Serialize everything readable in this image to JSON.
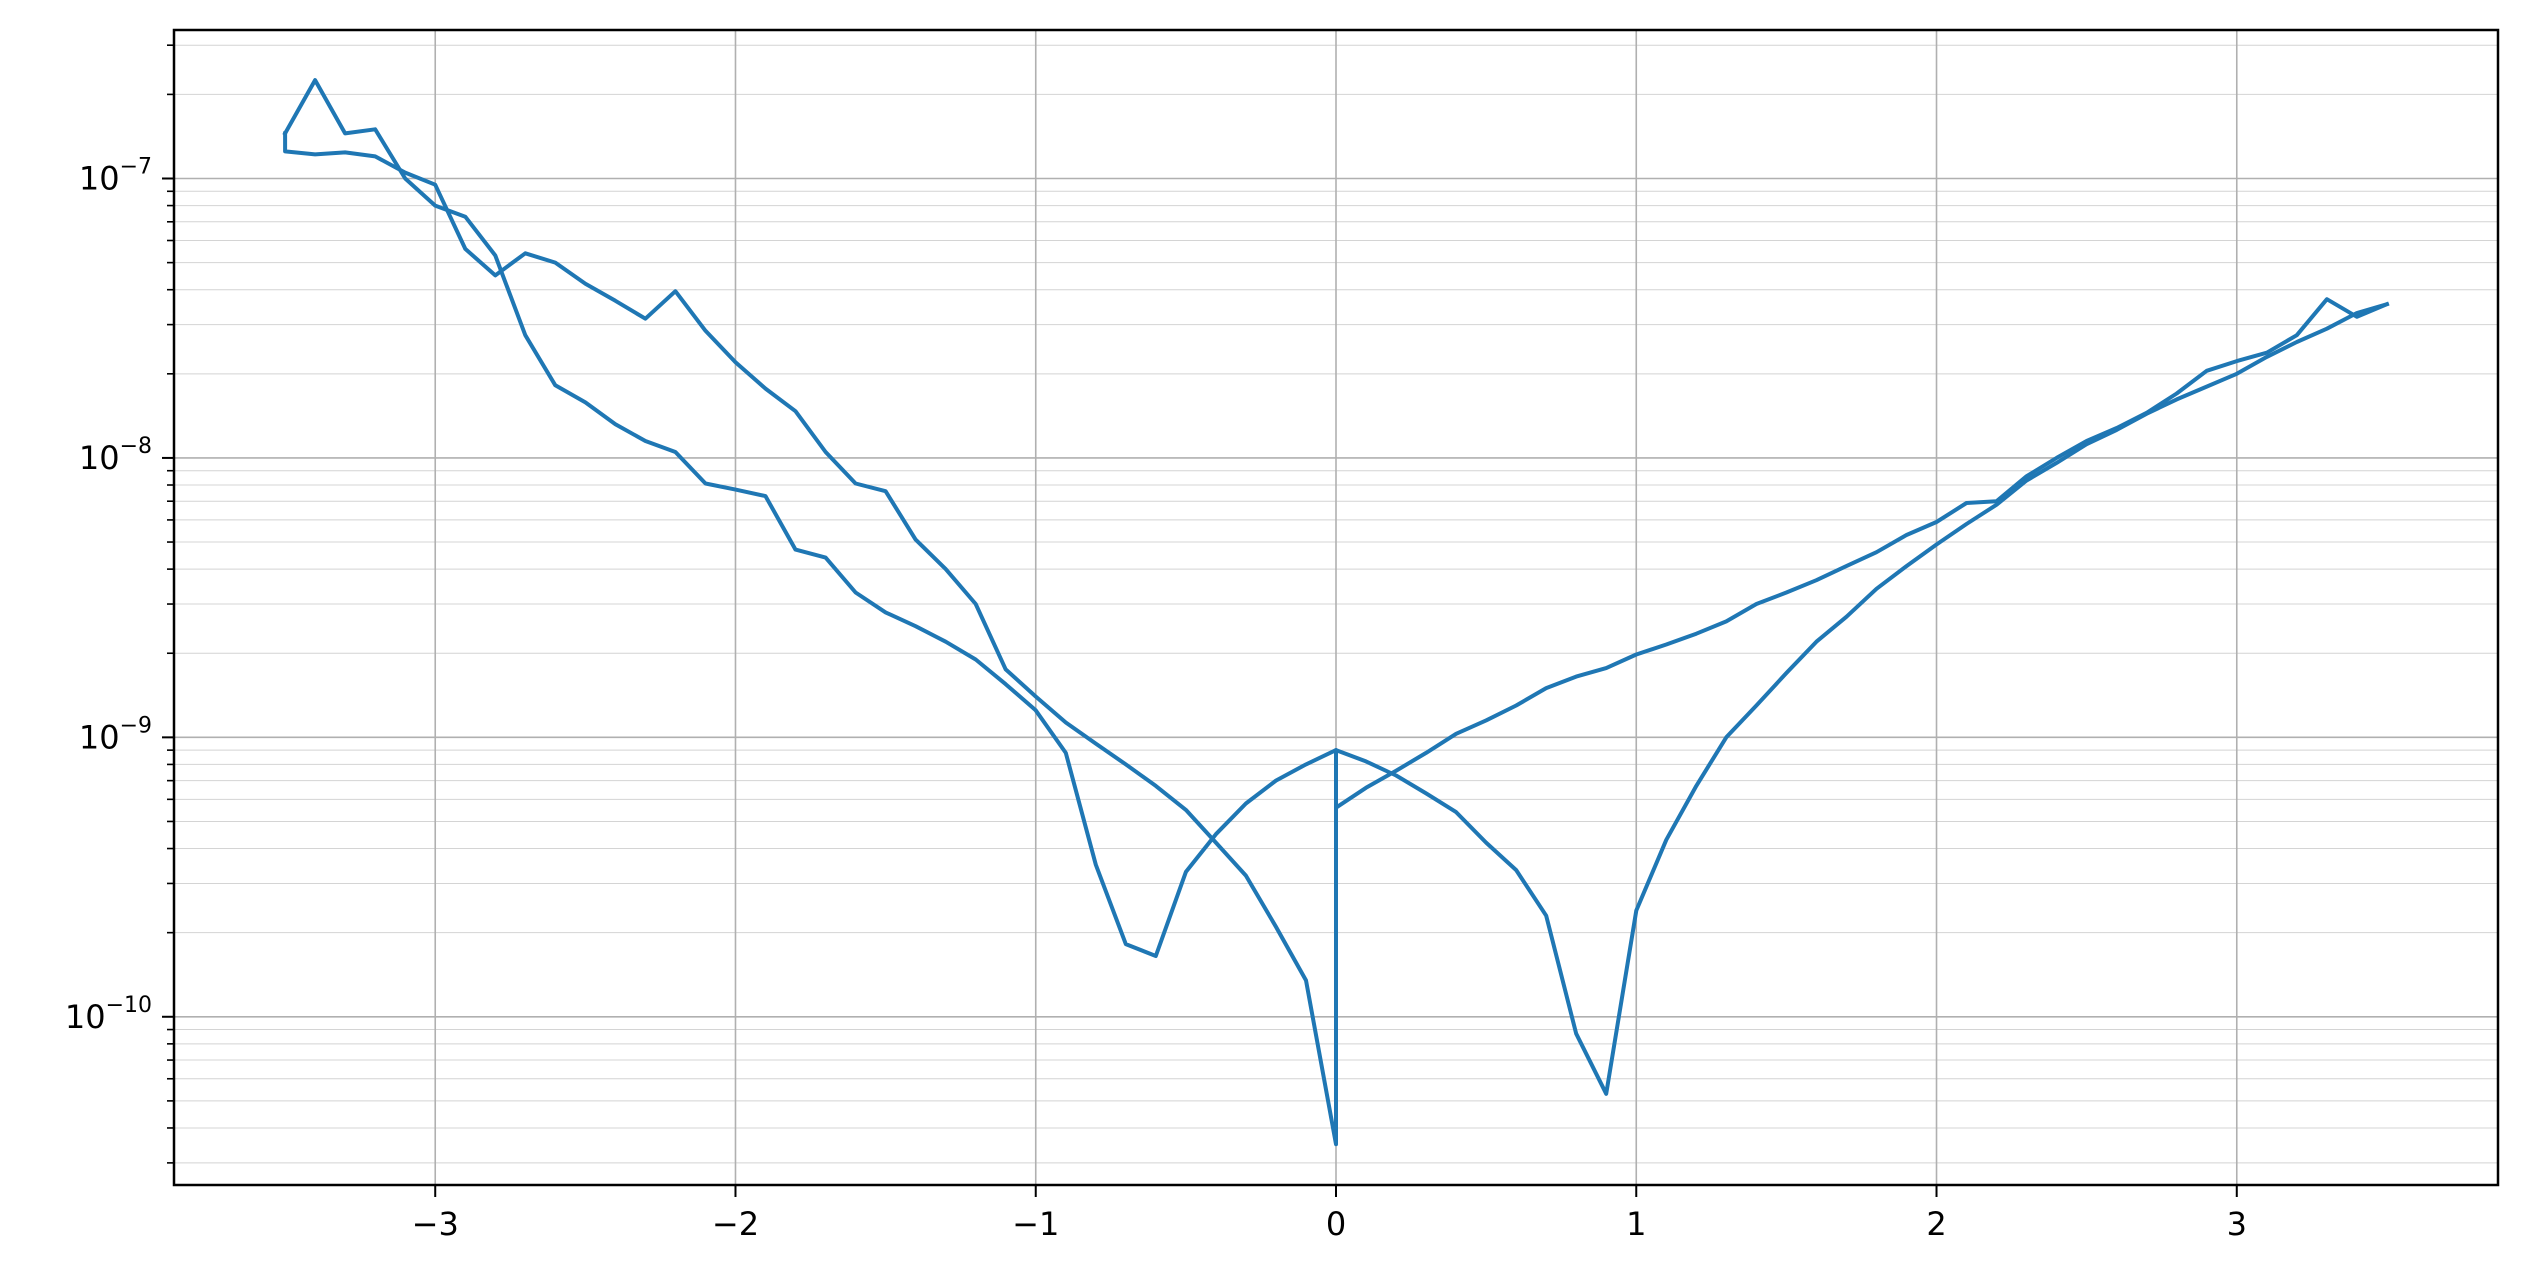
{
  "chart_data": {
    "type": "line",
    "title": "",
    "xlabel": "",
    "ylabel": "",
    "xlim": [
      -3.87,
      3.87
    ],
    "ylim": [
      2.5e-11,
      3.4e-07
    ],
    "yscale": "log",
    "grid": {
      "major": true,
      "minor_y": true
    },
    "colors": {
      "line": "#1f77b4",
      "grid": "#b0b0b0",
      "axes": "#000000"
    },
    "x_ticks": [
      {
        "value": -3,
        "label": "−3"
      },
      {
        "value": -2,
        "label": "−2"
      },
      {
        "value": -1,
        "label": "−1"
      },
      {
        "value": 0,
        "label": "0"
      },
      {
        "value": 1,
        "label": "1"
      },
      {
        "value": 2,
        "label": "2"
      },
      {
        "value": 3,
        "label": "3"
      }
    ],
    "y_ticks": [
      {
        "value": 1e-10,
        "base": "10",
        "exponent": "−10"
      },
      {
        "value": 1e-09,
        "base": "10",
        "exponent": "−9"
      },
      {
        "value": 1e-08,
        "base": "10",
        "exponent": "−8"
      },
      {
        "value": 1e-07,
        "base": "10",
        "exponent": "−7"
      }
    ],
    "series": [
      {
        "x": [
          -3.5,
          -3.4,
          -3.3,
          -3.2,
          -3.1,
          -3.0,
          -2.9,
          -2.8,
          -2.7,
          -2.6,
          -2.5,
          -2.4,
          -2.3,
          -2.2,
          -2.1,
          -2.0,
          -1.9,
          -1.8,
          -1.7,
          -1.6,
          -1.5,
          -1.4,
          -1.3,
          -1.2,
          -1.1,
          -1.0,
          -0.9,
          -0.8,
          -0.7,
          -0.6,
          -0.5,
          -0.4,
          -0.3,
          -0.2,
          -0.1,
          0.0,
          0.0,
          0.1,
          0.2,
          0.3,
          0.4,
          0.5,
          0.6,
          0.7,
          0.8,
          0.9,
          1.0,
          1.1,
          1.2,
          1.3,
          1.4,
          1.5,
          1.6,
          1.7,
          1.8,
          1.9,
          2.0,
          2.1,
          2.2,
          2.3,
          2.4,
          2.5,
          2.6,
          2.7,
          2.8,
          2.9,
          3.0,
          3.1,
          3.2,
          3.3,
          3.4,
          3.5
        ],
        "y": [
          1.45e-07,
          2.25e-07,
          1.45e-07,
          1.5e-07,
          1e-07,
          8e-08,
          7.3e-08,
          5.3e-08,
          2.75e-08,
          1.82e-08,
          1.58e-08,
          1.32e-08,
          1.15e-08,
          1.05e-08,
          8.1e-09,
          7.7e-09,
          7.3e-09,
          4.7e-09,
          4.4e-09,
          3.3e-09,
          2.8e-09,
          2.5e-09,
          2.2e-09,
          1.9e-09,
          1.55e-09,
          1.25e-09,
          8.8e-10,
          3.5e-10,
          1.82e-10,
          1.65e-10,
          3.3e-10,
          4.5e-10,
          5.8e-10,
          7e-10,
          8e-10,
          9e-10,
          5.6e-10,
          6.6e-10,
          7.6e-10,
          8.8e-10,
          1.03e-09,
          1.15e-09,
          1.3e-09,
          1.5e-09,
          1.65e-09,
          1.77e-09,
          1.98e-09,
          2.15e-09,
          2.35e-09,
          2.6e-09,
          3e-09,
          3.3e-09,
          3.65e-09,
          4.1e-09,
          4.6e-09,
          5.3e-09,
          5.9e-09,
          6.9e-09,
          7e-09,
          8.6e-09,
          1e-08,
          1.15e-08,
          1.28e-08,
          1.45e-08,
          1.7e-08,
          2.05e-08,
          2.22e-08,
          2.38e-08,
          2.75e-08,
          3.7e-08,
          3.2e-08,
          3.55e-08
        ]
      },
      {
        "x": [
          -3.5,
          -3.5,
          -3.4,
          -3.3,
          -3.2,
          -3.1,
          -3.0,
          -2.9,
          -2.8,
          -2.7,
          -2.6,
          -2.5,
          -2.4,
          -2.3,
          -2.2,
          -2.1,
          -2.0,
          -1.9,
          -1.8,
          -1.7,
          -1.6,
          -1.5,
          -1.4,
          -1.3,
          -1.2,
          -1.1,
          -1.0,
          -0.9,
          -0.8,
          -0.7,
          -0.6,
          -0.5,
          -0.4,
          -0.3,
          -0.2,
          -0.1,
          0.0,
          0.0,
          0.1,
          0.2,
          0.3,
          0.4,
          0.5,
          0.6,
          0.7,
          0.8,
          0.9,
          1.0,
          1.1,
          1.2,
          1.3,
          1.4,
          1.5,
          1.6,
          1.7,
          1.8,
          1.9,
          2.0,
          2.1,
          2.2,
          2.3,
          2.4,
          2.5,
          2.6,
          2.7,
          2.8,
          2.9,
          3.0,
          3.1,
          3.2,
          3.3,
          3.4,
          3.5
        ],
        "y": [
          1.45e-07,
          1.25e-07,
          1.22e-07,
          1.24e-07,
          1.2e-07,
          1.05e-07,
          9.5e-08,
          5.6e-08,
          4.5e-08,
          5.4e-08,
          5e-08,
          4.2e-08,
          3.65e-08,
          3.15e-08,
          3.95e-08,
          2.85e-08,
          2.2e-08,
          1.77e-08,
          1.47e-08,
          1.05e-08,
          8.1e-09,
          7.6e-09,
          5.1e-09,
          4e-09,
          3e-09,
          1.75e-09,
          1.4e-09,
          1.13e-09,
          9.5e-10,
          8e-10,
          6.7e-10,
          5.5e-10,
          4.2e-10,
          3.2e-10,
          2.1e-10,
          1.35e-10,
          3.5e-11,
          9e-10,
          8.2e-10,
          7.3e-10,
          6.3e-10,
          5.4e-10,
          4.2e-10,
          3.35e-10,
          2.3e-10,
          8.7e-11,
          5.3e-11,
          2.4e-10,
          4.3e-10,
          6.7e-10,
          1e-09,
          1.3e-09,
          1.7e-09,
          2.2e-09,
          2.7e-09,
          3.4e-09,
          4.1e-09,
          4.9e-09,
          5.8e-09,
          6.8e-09,
          8.3e-09,
          9.6e-09,
          1.12e-08,
          1.26e-08,
          1.44e-08,
          1.62e-08,
          1.8e-08,
          2e-08,
          2.3e-08,
          2.6e-08,
          2.9e-08,
          3.3e-08,
          3.55e-08
        ]
      }
    ]
  }
}
